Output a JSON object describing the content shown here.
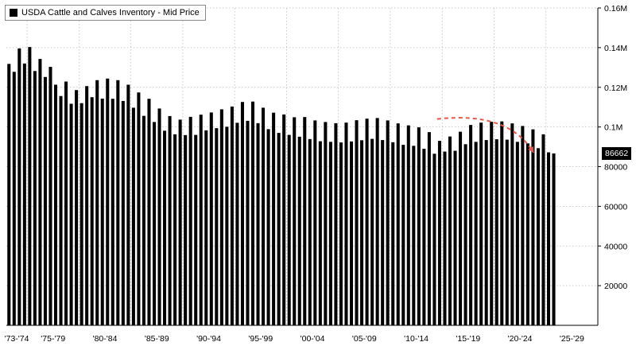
{
  "chart_data": {
    "type": "bar",
    "title": "",
    "legend": {
      "label": "USDA Cattle and Calves Inventory - Mid Price",
      "position": "top-left"
    },
    "ylim": [
      0,
      160000
    ],
    "y_ticks": [
      {
        "value": 20000,
        "label": "20000"
      },
      {
        "value": 40000,
        "label": "40000"
      },
      {
        "value": 60000,
        "label": "60000"
      },
      {
        "value": 80000,
        "label": "80000"
      },
      {
        "value": 100000,
        "label": "0.1M"
      },
      {
        "value": 120000,
        "label": "0.12M"
      },
      {
        "value": 140000,
        "label": "0.14M"
      },
      {
        "value": 160000,
        "label": "0.16M"
      }
    ],
    "x_tick_labels": [
      "'73-'74",
      "'75-'79",
      "'80-'84",
      "'85-'89",
      "'90-'94",
      "'95-'99",
      "'00-'04",
      "'05-'09",
      "'10-'14",
      "'15-'19",
      "'20-'24",
      "'25-'29"
    ],
    "x_range": [
      1973,
      2030
    ],
    "grid": true,
    "last_value_label": "86662",
    "annotation": {
      "type": "dashed-arrow",
      "color": "#e8584a",
      "from": [
        2014.5,
        104000
      ],
      "to": [
        2023.8,
        87000
      ],
      "direction": "down-right"
    },
    "values": [
      131800,
      127800,
      139600,
      132000,
      140300,
      128200,
      134300,
      125200,
      130300,
      121300,
      115600,
      122900,
      111700,
      118600,
      112000,
      120600,
      115000,
      123600,
      114300,
      124400,
      114200,
      123600,
      113100,
      121300,
      109700,
      117400,
      105600,
      114200,
      102500,
      109300,
      98100,
      105500,
      96300,
      103700,
      95900,
      105100,
      96000,
      106200,
      98300,
      107300,
      99400,
      108900,
      100100,
      110300,
      102100,
      112600,
      103100,
      112800,
      101900,
      109700,
      98900,
      107200,
      97000,
      106300,
      96000,
      104900,
      95100,
      105000,
      93900,
      103300,
      92800,
      102500,
      92500,
      101900,
      92200,
      102200,
      92700,
      103400,
      93300,
      104200,
      94000,
      104500,
      93400,
      103300,
      92300,
      101800,
      91000,
      100800,
      90500,
      99800,
      89000,
      97400,
      86500,
      93000,
      87600,
      95200,
      88000,
      97600,
      91300,
      101000,
      92500,
      102200,
      93400,
      102600,
      93800,
      102800,
      93600,
      101800,
      92500,
      100500,
      91700,
      98800,
      89300,
      96300,
      87200,
      86662
    ]
  }
}
